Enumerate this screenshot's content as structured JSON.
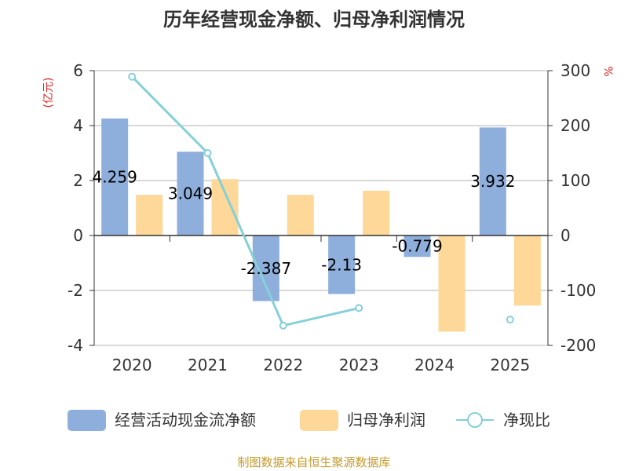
{
  "chart_data": {
    "type": "bar",
    "title": "历年经营现金净额、归母净利润情况",
    "categories": [
      "2020",
      "2021",
      "2022",
      "2023",
      "2024",
      "2025"
    ],
    "y_left": {
      "unit": "(亿元)",
      "min": -4,
      "max": 6,
      "ticks": [
        -4,
        -2,
        0,
        2,
        4,
        6
      ]
    },
    "y_right": {
      "unit": "%",
      "min": -200,
      "max": 300,
      "ticks": [
        -200,
        -100,
        0,
        100,
        200,
        300
      ]
    },
    "series": [
      {
        "name": "经营活动现金流净额",
        "type": "bar",
        "axis": "left",
        "color": "#8eaedb",
        "values": [
          4.259,
          3.049,
          -2.387,
          -2.13,
          -0.779,
          3.932
        ],
        "labels": [
          "4.259",
          "3.049",
          "-2.387",
          "-2.13",
          "-0.779",
          "3.932"
        ]
      },
      {
        "name": "归母净利润",
        "type": "bar",
        "axis": "left",
        "color": "#fdd898",
        "values": [
          1.48,
          2.05,
          1.48,
          1.63,
          -3.5,
          -2.55
        ]
      },
      {
        "name": "净现比",
        "type": "line",
        "axis": "right",
        "color": "#86d0d8",
        "values": [
          289,
          150,
          -164,
          -132,
          null,
          -153
        ]
      }
    ],
    "grid": true,
    "legend_position": "bottom"
  },
  "source": "制图数据来自恒生聚源数据库"
}
